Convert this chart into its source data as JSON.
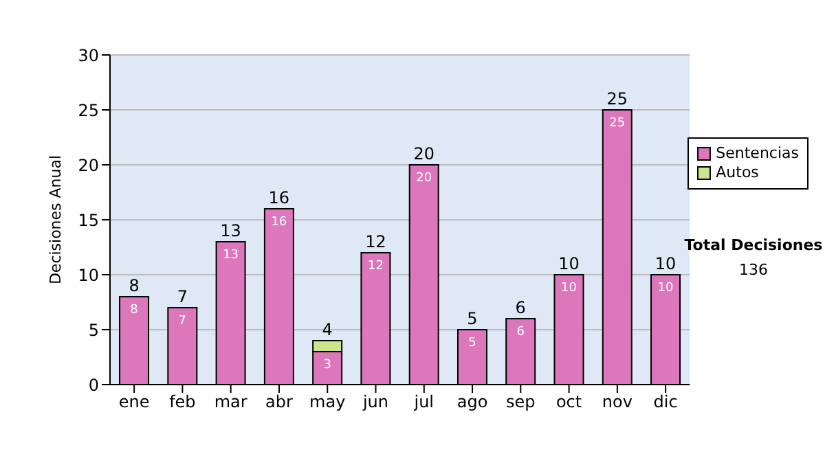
{
  "chart_data": {
    "type": "bar",
    "stacked": true,
    "ylabel": "Decisiones Anual",
    "categories": [
      "ene",
      "feb",
      "mar",
      "abr",
      "may",
      "jun",
      "jul",
      "ago",
      "sep",
      "oct",
      "nov",
      "dic"
    ],
    "series": [
      {
        "name": "Sentencias",
        "color": "#dd77bb",
        "values": [
          8,
          7,
          13,
          16,
          3,
          12,
          20,
          5,
          6,
          10,
          25,
          10
        ],
        "value_labels": [
          "8",
          "7",
          "13",
          "16",
          "3",
          "12",
          "20",
          "5",
          "6",
          "10",
          "25",
          "10"
        ]
      },
      {
        "name": "Autos",
        "color": "#cce68c",
        "values": [
          null,
          null,
          null,
          null,
          1,
          null,
          null,
          null,
          null,
          null,
          null,
          null
        ]
      }
    ],
    "totals": [
      "8",
      "7",
      "13",
      "16",
      "4",
      "12",
      "20",
      "5",
      "6",
      "10",
      "25",
      "10"
    ],
    "ylim": [
      0,
      30
    ],
    "yticks": [
      0,
      5,
      10,
      15,
      20,
      25,
      30
    ],
    "grid": "y",
    "legend": "right",
    "annotations": [
      "Total Decisiones",
      "136"
    ]
  }
}
